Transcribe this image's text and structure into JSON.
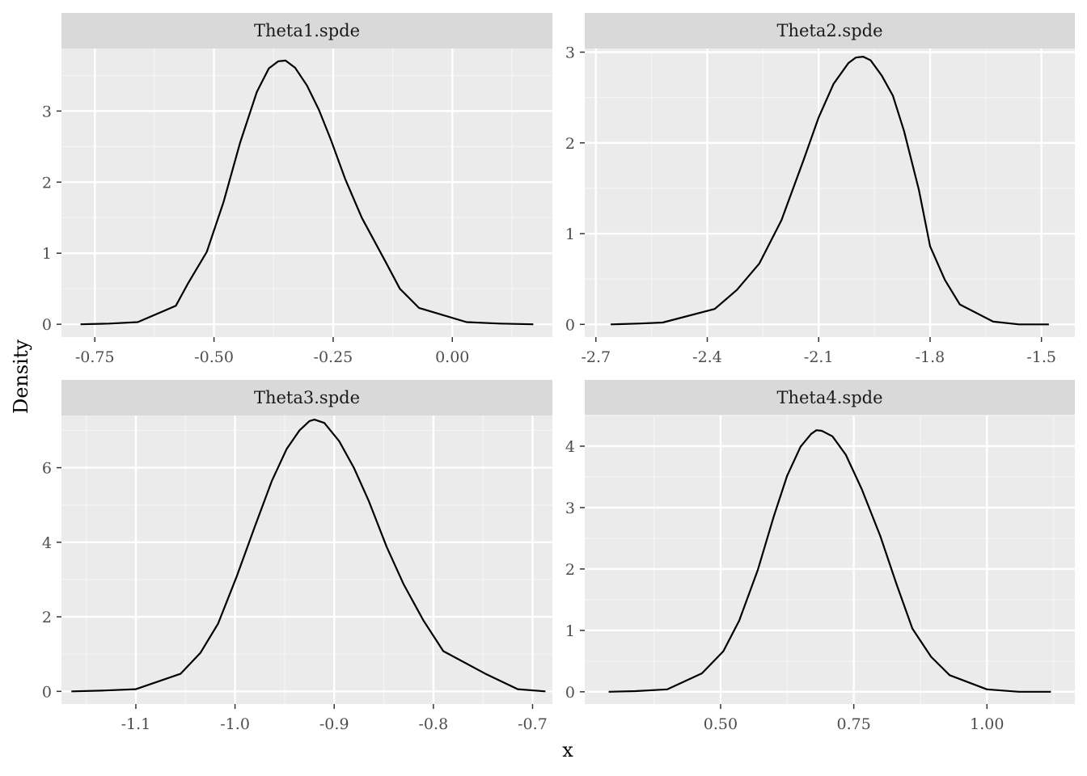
{
  "colors": {
    "panel_background": "#ebebeb",
    "strip_background": "#d9d9d9",
    "grid_major": "#ffffff",
    "grid_minor": "#f5f5f5",
    "line": "#000000",
    "tick_text": "#4d4d4d"
  },
  "chart_data": {
    "type": "line",
    "xlabel": "x",
    "ylabel": "Density",
    "grid": true,
    "legend": "none",
    "panels": [
      {
        "strip": "Theta1.spde",
        "xlim": [
          -0.82,
          0.21
        ],
        "ylim": [
          -0.18,
          3.88
        ],
        "xticks": [
          -0.75,
          -0.5,
          -0.25,
          0.0
        ],
        "xtick_labels": [
          "-0.75",
          "-0.50",
          "-0.25",
          "0.00"
        ],
        "yticks": [
          0,
          1,
          2,
          3
        ],
        "ytick_labels": [
          "0",
          "1",
          "2",
          "3"
        ],
        "x": [
          -0.78,
          -0.72,
          -0.66,
          -0.58,
          -0.555,
          -0.515,
          -0.48,
          -0.445,
          -0.41,
          -0.385,
          -0.365,
          -0.35,
          -0.33,
          -0.305,
          -0.28,
          -0.255,
          -0.225,
          -0.19,
          -0.14,
          -0.11,
          -0.07,
          0.03,
          0.1,
          0.17
        ],
        "y": [
          0.0,
          0.01,
          0.03,
          0.26,
          0.57,
          1.02,
          1.72,
          2.56,
          3.27,
          3.6,
          3.7,
          3.71,
          3.61,
          3.36,
          3.02,
          2.6,
          2.05,
          1.5,
          0.88,
          0.5,
          0.23,
          0.03,
          0.01,
          0.0
        ]
      },
      {
        "strip": "Theta2.spde",
        "xlim": [
          -2.73,
          -1.41
        ],
        "ylim": [
          -0.14,
          3.04
        ],
        "xticks": [
          -2.7,
          -2.4,
          -2.1,
          -1.8,
          -1.5
        ],
        "xtick_labels": [
          "-2.7",
          "-2.4",
          "-2.1",
          "-1.8",
          "-1.5"
        ],
        "yticks": [
          0,
          1,
          2,
          3
        ],
        "ytick_labels": [
          "0",
          "1",
          "2",
          "3"
        ],
        "x": [
          -2.66,
          -2.58,
          -2.52,
          -2.38,
          -2.32,
          -2.26,
          -2.2,
          -2.14,
          -2.1,
          -2.06,
          -2.02,
          -2.0,
          -1.98,
          -1.96,
          -1.93,
          -1.9,
          -1.87,
          -1.83,
          -1.8,
          -1.76,
          -1.72,
          -1.63,
          -1.56,
          -1.48
        ],
        "y": [
          0.0,
          0.01,
          0.02,
          0.17,
          0.38,
          0.67,
          1.15,
          1.82,
          2.28,
          2.65,
          2.88,
          2.94,
          2.95,
          2.91,
          2.74,
          2.52,
          2.13,
          1.48,
          0.86,
          0.49,
          0.22,
          0.03,
          0.0,
          0.0
        ]
      },
      {
        "strip": "Theta3.spde",
        "xlim": [
          -1.175,
          -0.68
        ],
        "ylim": [
          -0.34,
          7.4
        ],
        "xticks": [
          -1.1,
          -1.0,
          -0.9,
          -0.8,
          -0.7
        ],
        "xtick_labels": [
          "-1.1",
          "-1.0",
          "-0.9",
          "-0.8",
          "-0.7"
        ],
        "yticks": [
          0,
          2,
          4,
          6
        ],
        "ytick_labels": [
          "0",
          "2",
          "4",
          "6"
        ],
        "x": [
          -1.165,
          -1.135,
          -1.1,
          -1.055,
          -1.035,
          -1.017,
          -0.998,
          -0.98,
          -0.963,
          -0.948,
          -0.935,
          -0.925,
          -0.92,
          -0.91,
          -0.895,
          -0.88,
          -0.865,
          -0.847,
          -0.83,
          -0.81,
          -0.79,
          -0.748,
          -0.715,
          -0.687
        ],
        "y": [
          0.0,
          0.02,
          0.06,
          0.47,
          1.03,
          1.82,
          3.1,
          4.42,
          5.64,
          6.5,
          7.0,
          7.25,
          7.29,
          7.2,
          6.71,
          5.99,
          5.1,
          3.87,
          2.87,
          1.9,
          1.08,
          0.48,
          0.06,
          0.0
        ]
      },
      {
        "strip": "Theta4.spde",
        "xlim": [
          0.245,
          1.165
        ],
        "ylim": [
          -0.2,
          4.5
        ],
        "xticks": [
          0.5,
          0.75,
          1.0
        ],
        "xtick_labels": [
          "0.50",
          "0.75",
          "1.00"
        ],
        "yticks": [
          0,
          1,
          2,
          3,
          4
        ],
        "ytick_labels": [
          "0",
          "1",
          "2",
          "3",
          "4"
        ],
        "x": [
          0.29,
          0.34,
          0.4,
          0.465,
          0.505,
          0.535,
          0.57,
          0.6,
          0.625,
          0.65,
          0.67,
          0.68,
          0.69,
          0.71,
          0.735,
          0.765,
          0.8,
          0.83,
          0.86,
          0.895,
          0.93,
          1.0,
          1.06,
          1.12
        ],
        "y": [
          0.0,
          0.01,
          0.04,
          0.3,
          0.66,
          1.16,
          1.99,
          2.86,
          3.52,
          3.99,
          4.2,
          4.26,
          4.25,
          4.16,
          3.86,
          3.3,
          2.53,
          1.76,
          1.03,
          0.57,
          0.27,
          0.04,
          0.0,
          0.0
        ]
      }
    ]
  }
}
